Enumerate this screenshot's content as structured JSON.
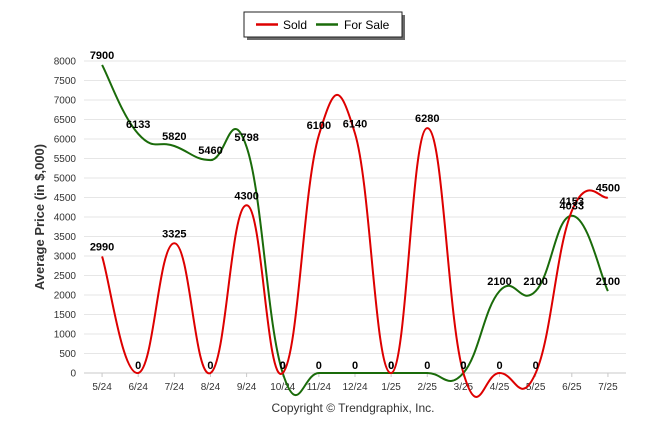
{
  "chart_data": {
    "type": "line",
    "categories": [
      "5/24",
      "6/24",
      "7/24",
      "8/24",
      "9/24",
      "10/24",
      "11/24",
      "12/24",
      "1/25",
      "2/25",
      "3/25",
      "4/25",
      "5/25",
      "6/25",
      "7/25"
    ],
    "series": [
      {
        "name": "Sold",
        "color": "#dd0000",
        "values": [
          2990,
          0,
          3325,
          0,
          4300,
          0,
          6100,
          6140,
          0,
          6280,
          0,
          0,
          0,
          4153,
          4500
        ]
      },
      {
        "name": "For Sale",
        "color": "#1a6b0a",
        "values": [
          7900,
          6133,
          5820,
          5460,
          5798,
          0,
          0,
          0,
          0,
          0,
          0,
          2100,
          2100,
          4033,
          2100
        ]
      }
    ],
    "xlabel": "",
    "ylabel": "Average Price (in $,000)",
    "ylim": [
      0,
      8000
    ],
    "yticks": [
      0,
      500,
      1000,
      1500,
      2000,
      2500,
      3000,
      3500,
      4000,
      4500,
      5000,
      5500,
      6000,
      6500,
      7000,
      7500,
      8000
    ],
    "grid": true,
    "legend_position": "top-center",
    "smooth": true
  },
  "footer": {
    "copyright": "Copyright © Trendgraphix, Inc."
  }
}
